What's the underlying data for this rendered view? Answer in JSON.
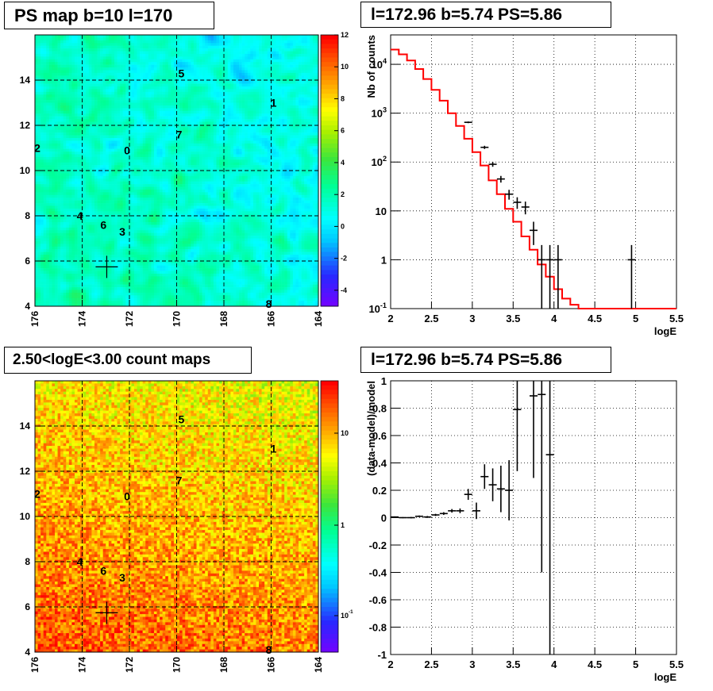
{
  "panels": {
    "ps_map": {
      "title": "PS map b=10 l=170"
    },
    "spectrum": {
      "title": "l=172.96 b=5.74 PS=5.86"
    },
    "count_map": {
      "title": "2.50<logE<3.00 count maps"
    },
    "residual": {
      "title": "l=172.96 b=5.74 PS=5.86"
    }
  },
  "chart_data": [
    {
      "type": "heatmap",
      "title": "PS map b=10 l=170",
      "xlim": [
        176,
        164
      ],
      "ylim": [
        4,
        16
      ],
      "xticks": [
        "176",
        "174",
        "172",
        "170",
        "168",
        "166",
        "164"
      ],
      "yticks": [
        "4",
        "6",
        "8",
        "10",
        "12",
        "14"
      ],
      "colorbar_ticks": [
        "-4",
        "-2",
        "0",
        "2",
        "4",
        "6",
        "8",
        "10",
        "12"
      ],
      "colorbar_range": [
        -5,
        12
      ],
      "grid": true,
      "sources": [
        {
          "label": "0",
          "l": 172.1,
          "b": 10.9
        },
        {
          "label": "1",
          "l": 165.9,
          "b": 13.0
        },
        {
          "label": "2",
          "l": 175.9,
          "b": 11.0
        },
        {
          "label": "3",
          "l": 172.3,
          "b": 7.3
        },
        {
          "label": "4",
          "l": 174.1,
          "b": 8.0
        },
        {
          "label": "5",
          "l": 169.8,
          "b": 14.3
        },
        {
          "label": "6",
          "l": 173.1,
          "b": 7.6
        },
        {
          "label": "7",
          "l": 169.9,
          "b": 11.6
        },
        {
          "label": "8",
          "l": 166.1,
          "b": 4.1
        }
      ],
      "marker": {
        "l": 172.96,
        "b": 5.74
      }
    },
    {
      "type": "line",
      "title": "l=172.96 b=5.74 PS=5.86",
      "xlabel": "logE",
      "ylabel": "Nb of counts",
      "xlim": [
        2,
        5.5
      ],
      "ylim": [
        0.1,
        40000
      ],
      "yscale": "log",
      "xticks": [
        "2",
        "2.5",
        "3",
        "3.5",
        "4",
        "4.5",
        "5",
        "5.5"
      ],
      "yticks": [
        "10^-1",
        "1",
        "10",
        "10^2",
        "10^3",
        "10^4"
      ],
      "grid": true,
      "data_points": [
        {
          "x": 2.95,
          "y": 650,
          "yerr_lo": 25,
          "yerr_hi": 25
        },
        {
          "x": 3.15,
          "y": 200,
          "yerr_lo": 15,
          "yerr_hi": 15
        },
        {
          "x": 3.25,
          "y": 90,
          "yerr_lo": 10,
          "yerr_hi": 10
        },
        {
          "x": 3.35,
          "y": 45,
          "yerr_lo": 7,
          "yerr_hi": 7
        },
        {
          "x": 3.45,
          "y": 22,
          "yerr_lo": 5,
          "yerr_hi": 5
        },
        {
          "x": 3.55,
          "y": 15,
          "yerr_lo": 4,
          "yerr_hi": 4
        },
        {
          "x": 3.65,
          "y": 12,
          "yerr_lo": 3.5,
          "yerr_hi": 3.5
        },
        {
          "x": 3.75,
          "y": 4,
          "yerr_lo": 2,
          "yerr_hi": 2
        },
        {
          "x": 3.85,
          "y": 1,
          "yerr_lo": 0.9,
          "yerr_hi": 1
        },
        {
          "x": 3.95,
          "y": 1,
          "yerr_lo": 0.9,
          "yerr_hi": 1
        },
        {
          "x": 4.05,
          "y": 1,
          "yerr_lo": 0.9,
          "yerr_hi": 1
        },
        {
          "x": 4.95,
          "y": 1,
          "yerr_lo": 0.9,
          "yerr_hi": 1
        }
      ],
      "model_step": {
        "edges": [
          2.0,
          2.1,
          2.2,
          2.3,
          2.4,
          2.5,
          2.6,
          2.7,
          2.8,
          2.9,
          3.0,
          3.1,
          3.2,
          3.3,
          3.4,
          3.5,
          3.6,
          3.7,
          3.8,
          3.9,
          4.0,
          4.1,
          4.2,
          4.3,
          4.4,
          5.5
        ],
        "values": [
          20000,
          16000,
          12000,
          8000,
          5000,
          3000,
          1800,
          1000,
          550,
          300,
          160,
          85,
          42,
          22,
          11,
          6,
          3,
          1.6,
          0.8,
          0.45,
          0.25,
          0.16,
          0.12,
          0.1,
          0.1
        ]
      }
    },
    {
      "type": "heatmap",
      "title": "2.50<logE<3.00 count maps",
      "xlim": [
        176,
        164
      ],
      "ylim": [
        4,
        16
      ],
      "xticks": [
        "176",
        "174",
        "172",
        "170",
        "168",
        "166",
        "164"
      ],
      "yticks": [
        "4",
        "6",
        "8",
        "10",
        "12",
        "14"
      ],
      "colorbar_ticks": [
        "10^-1",
        "1",
        "10"
      ],
      "colorbar_scale": "log",
      "grid": true
    },
    {
      "type": "scatter",
      "title": "l=172.96 b=5.74 PS=5.86",
      "xlabel": "logE",
      "ylabel": "(data-model)/model",
      "xlim": [
        2,
        5.5
      ],
      "ylim": [
        -1,
        1
      ],
      "xticks": [
        "2",
        "2.5",
        "3",
        "3.5",
        "4",
        "4.5",
        "5",
        "5.5"
      ],
      "yticks": [
        "-1",
        "-0.8",
        "-0.6",
        "-0.4",
        "-0.2",
        "0",
        "0.2",
        "0.4",
        "0.6",
        "0.8",
        "1"
      ],
      "grid": true,
      "data_points": [
        {
          "x": 2.05,
          "y": 0.005,
          "err": 0.004
        },
        {
          "x": 2.15,
          "y": 0.0,
          "err": 0.004
        },
        {
          "x": 2.25,
          "y": 0.0,
          "err": 0.005
        },
        {
          "x": 2.35,
          "y": 0.01,
          "err": 0.006
        },
        {
          "x": 2.45,
          "y": 0.005,
          "err": 0.007
        },
        {
          "x": 2.55,
          "y": 0.02,
          "err": 0.008
        },
        {
          "x": 2.65,
          "y": 0.03,
          "err": 0.01
        },
        {
          "x": 2.75,
          "y": 0.05,
          "err": 0.013
        },
        {
          "x": 2.85,
          "y": 0.05,
          "err": 0.017
        },
        {
          "x": 2.95,
          "y": 0.17,
          "err": 0.04
        },
        {
          "x": 3.05,
          "y": 0.05,
          "err": 0.06
        },
        {
          "x": 3.15,
          "y": 0.3,
          "err": 0.09
        },
        {
          "x": 3.25,
          "y": 0.24,
          "err": 0.12
        },
        {
          "x": 3.35,
          "y": 0.21,
          "err": 0.17
        },
        {
          "x": 3.45,
          "y": 0.2,
          "err": 0.22
        },
        {
          "x": 3.55,
          "y": 0.79,
          "err": 0.45
        },
        {
          "x": 3.75,
          "y": 0.89,
          "err": 0.6
        },
        {
          "x": 3.85,
          "y": 0.9,
          "err": 1.3
        },
        {
          "x": 3.95,
          "y": 0.46,
          "err": 1.5
        }
      ]
    }
  ]
}
